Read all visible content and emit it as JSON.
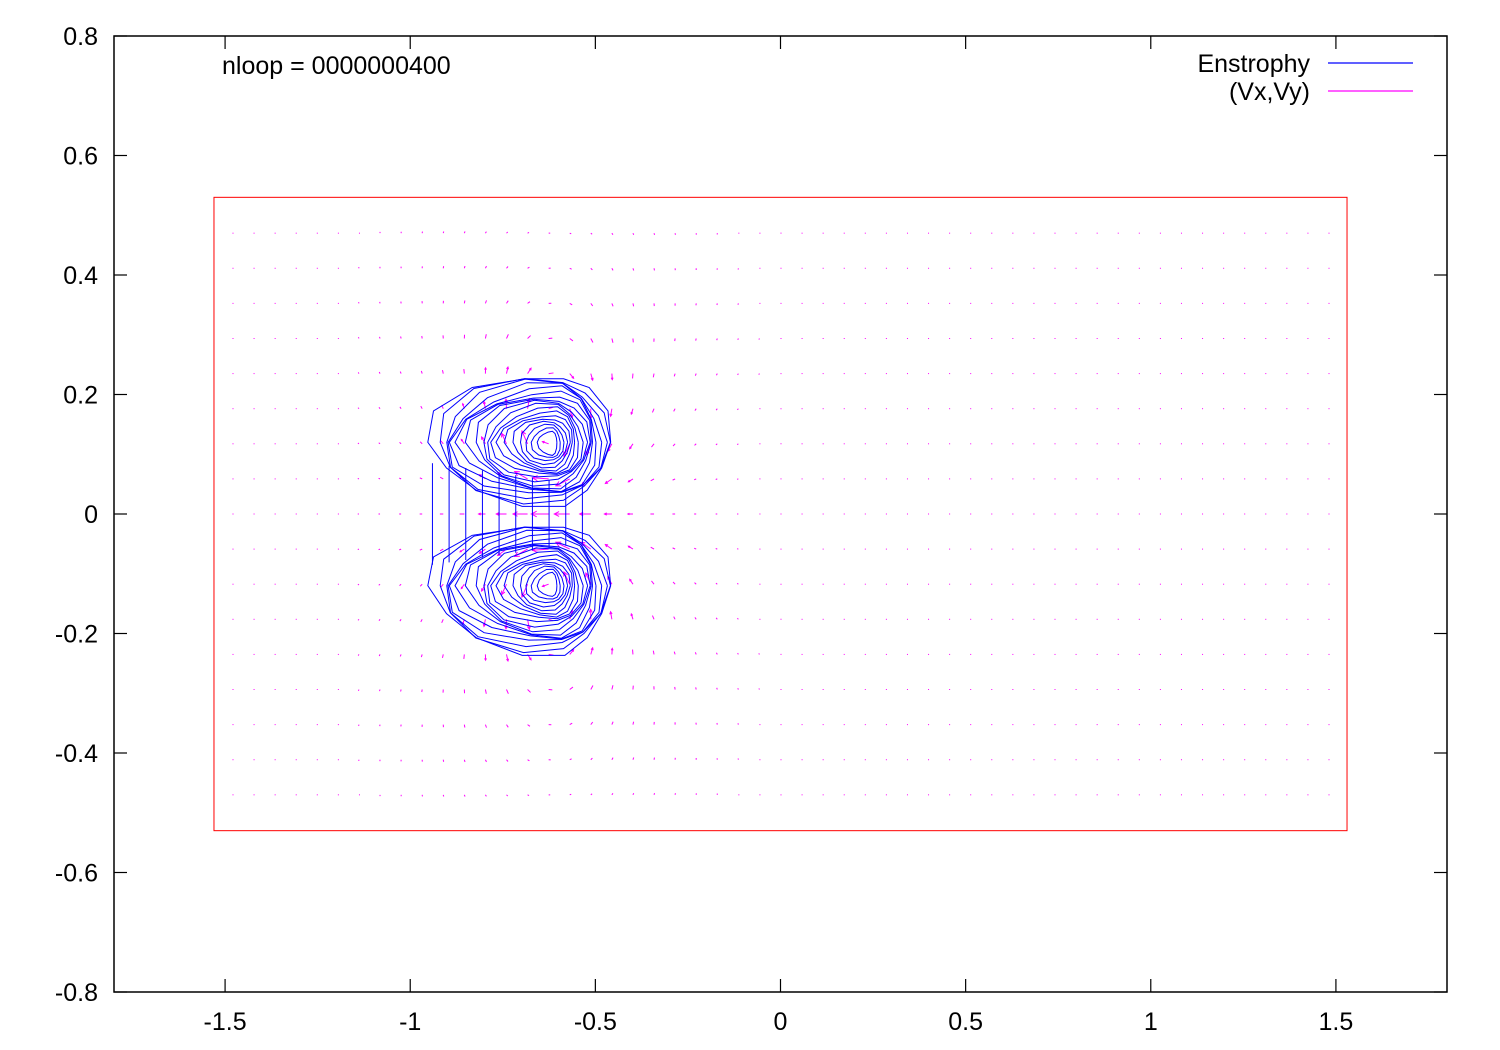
{
  "chart_data": {
    "type": "contour",
    "annotation": "nloop = 0000000400",
    "xlim": [
      -1.8,
      1.8
    ],
    "ylim": [
      -0.8,
      0.8
    ],
    "x_ticks": [
      -1.5,
      -1,
      -0.5,
      0,
      0.5,
      1,
      1.5
    ],
    "x_tick_labels": [
      "-1.5",
      "-1",
      "-0.5",
      "0",
      "0.5",
      "1",
      "1.5"
    ],
    "y_ticks": [
      0.8,
      0.6,
      0.4,
      0.2,
      0,
      -0.2,
      -0.4,
      -0.6,
      -0.8
    ],
    "y_tick_labels": [
      "0.8",
      "0.6",
      "0.4",
      "0.2",
      "0",
      "-0.2",
      "-0.4",
      "-0.6",
      "-0.8"
    ],
    "grid": false,
    "legend_position": "top-right",
    "colors": {
      "enstrophy": "#0000ff",
      "velocity": "#ff00ff",
      "domain_boundary": "#ff0000",
      "axes": "#000000"
    },
    "series": [
      {
        "name": "Enstrophy",
        "kind": "contour"
      },
      {
        "name": "(Vx,Vy)",
        "kind": "vector"
      }
    ],
    "domain_box": {
      "x": [
        -1.53,
        1.53
      ],
      "y": [
        -0.53,
        0.53
      ]
    },
    "vortex_pair": {
      "center_x": -0.62,
      "upper_core_y": 0.12,
      "lower_core_y": -0.12,
      "contour_extent_x": [
        -0.97,
        -0.45
      ],
      "contour_extent_y": [
        -0.24,
        0.24
      ]
    },
    "vector_grid": {
      "x_range": [
        -1.48,
        1.48
      ],
      "y_range": [
        -0.47,
        0.47
      ],
      "columns": 53,
      "rows": 17
    }
  }
}
